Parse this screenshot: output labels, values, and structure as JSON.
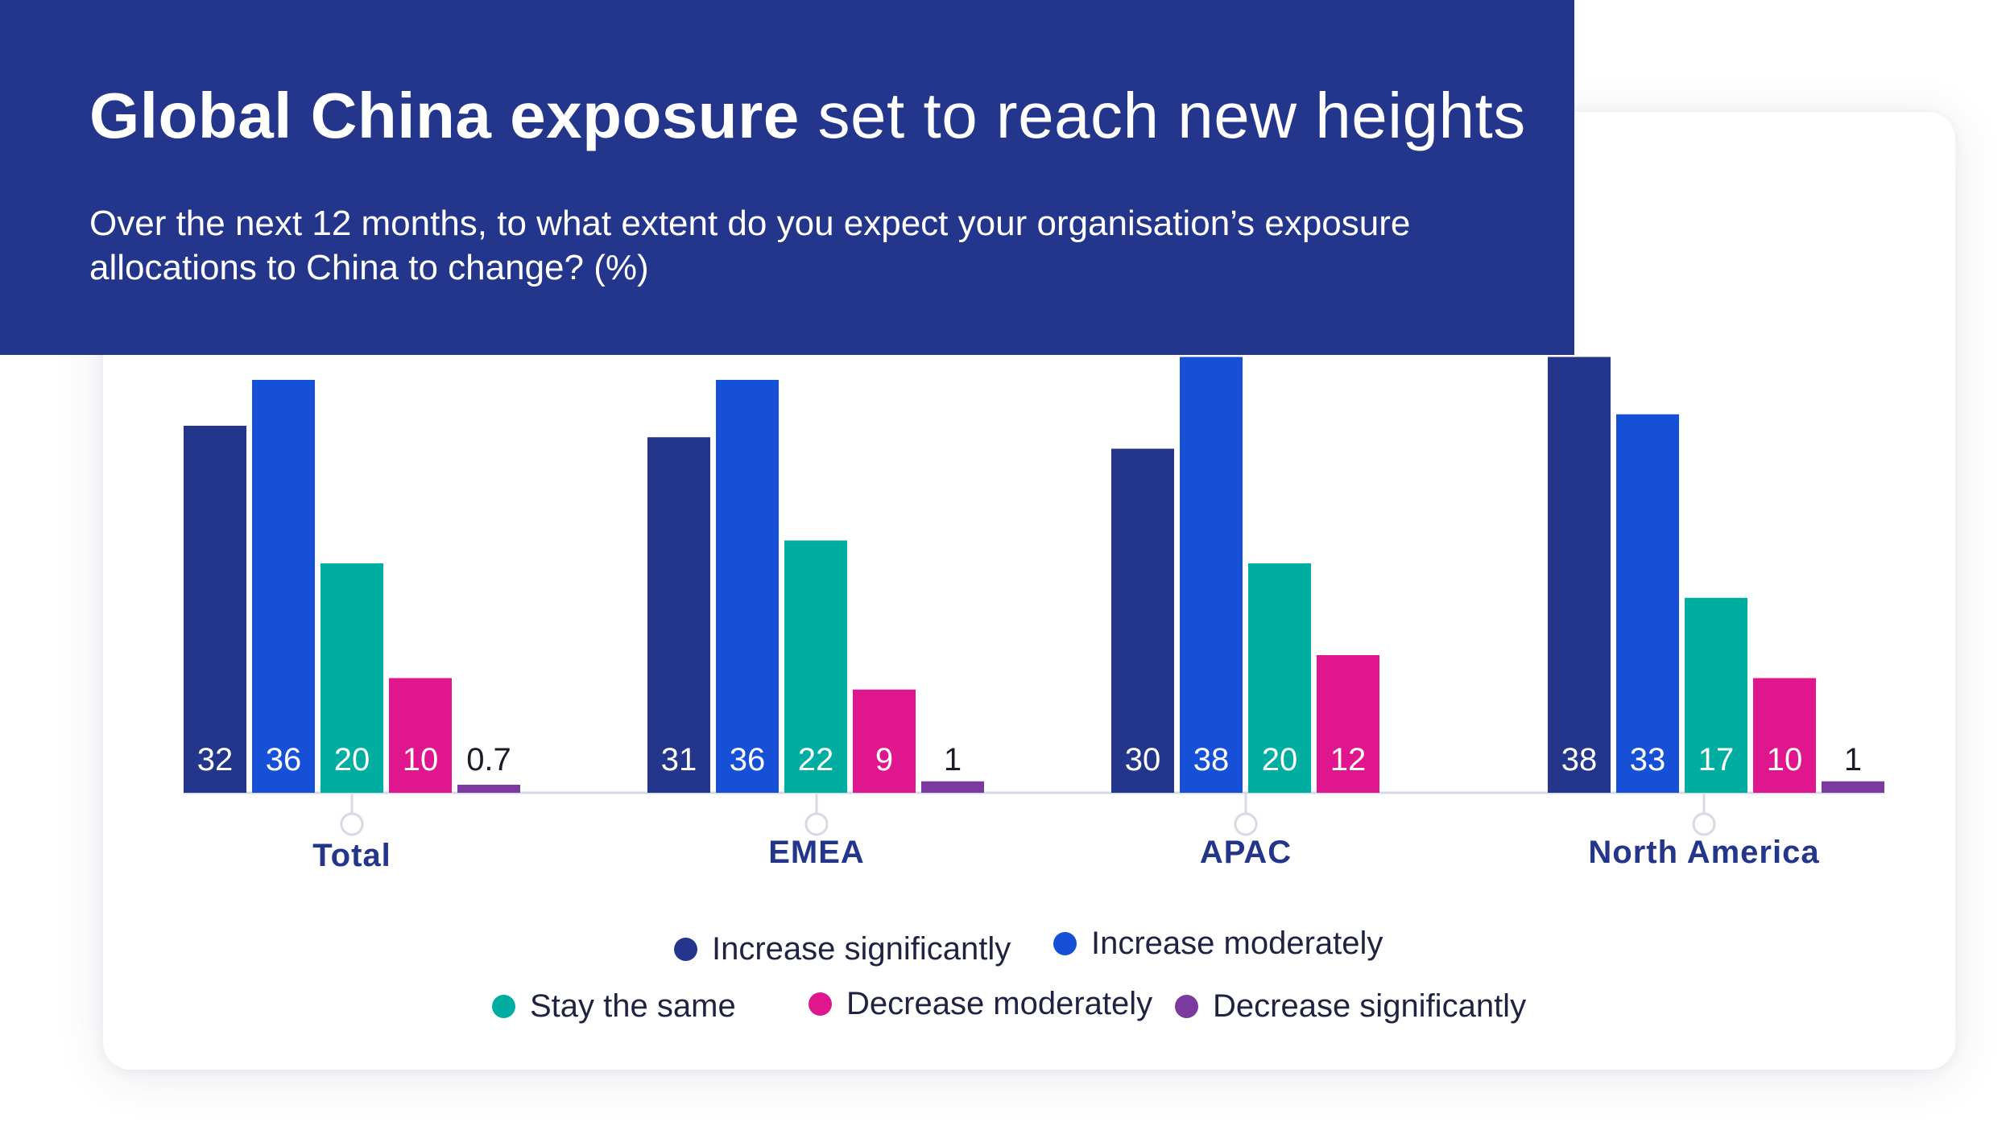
{
  "header": {
    "title_bold": "Global China exposure",
    "title_light": "set to reach new heights",
    "subtitle": "Over the next 12 months, to what extent do you expect your organisation’s exposure allocations to China to change? (%)"
  },
  "colors": {
    "header_bg": "#23368b",
    "increase_significantly": "#23368b",
    "increase_moderately": "#1650d6",
    "stay_the_same": "#00aea1",
    "decrease_moderately": "#e0168f",
    "decrease_significantly": "#7a3aa0",
    "category_label": "#23368b",
    "axis": "#d6d9e6"
  },
  "chart_data": {
    "type": "bar",
    "title": "Global China exposure set to reach new heights",
    "subtitle": "Over the next 12 months, to what extent do you expect your organisation’s exposure allocations to China to change? (%)",
    "categories": [
      "Total",
      "EMEA",
      "APAC",
      "North America"
    ],
    "series": [
      {
        "name": "Increase significantly",
        "values": [
          32,
          31,
          30,
          38
        ],
        "labels": [
          "32",
          "31",
          "30",
          "38"
        ]
      },
      {
        "name": "Increase moderately",
        "values": [
          36,
          36,
          38,
          33
        ],
        "labels": [
          "36",
          "36",
          "38",
          "33"
        ]
      },
      {
        "name": "Stay the same",
        "values": [
          20,
          22,
          20,
          17
        ],
        "labels": [
          "20",
          "22",
          "20",
          "17"
        ]
      },
      {
        "name": "Decrease moderately",
        "values": [
          10,
          9,
          12,
          10
        ],
        "labels": [
          "10",
          "9",
          "12",
          "10"
        ]
      },
      {
        "name": "Decrease significantly",
        "values": [
          0.7,
          1,
          0,
          1
        ],
        "labels": [
          "0.7",
          "1",
          "",
          "1"
        ]
      }
    ],
    "xlabel": "",
    "ylabel": "%",
    "ylim": [
      0,
      40
    ],
    "grid": false,
    "legend": "bottom-center"
  }
}
